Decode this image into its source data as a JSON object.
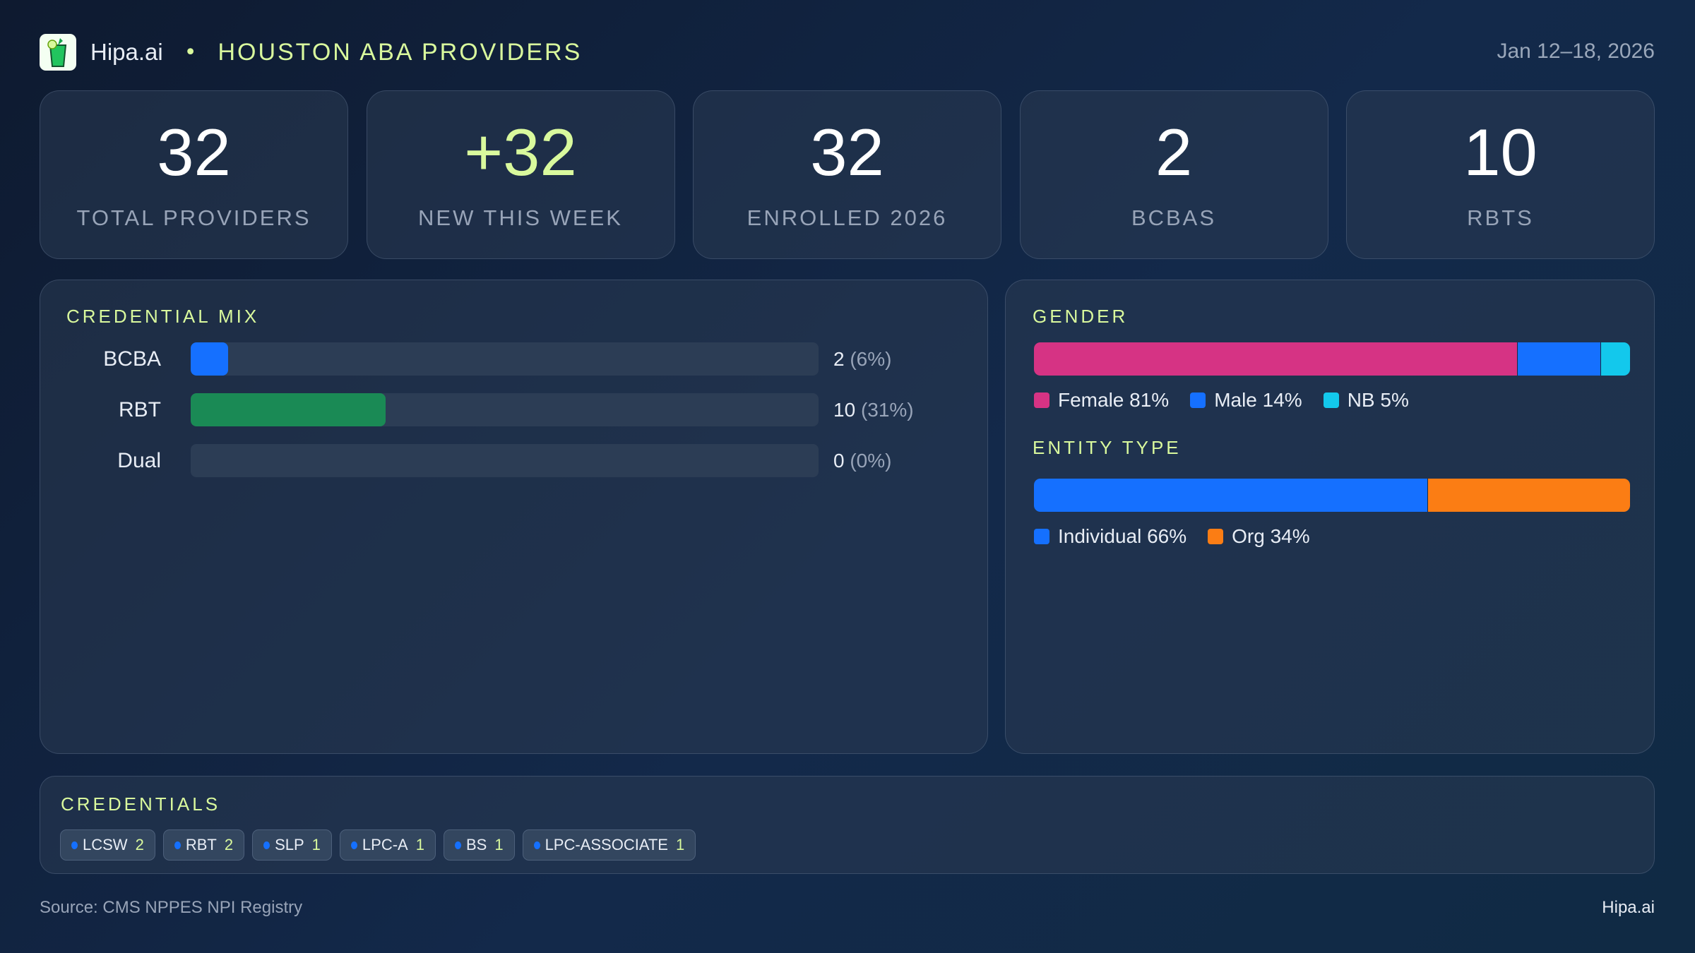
{
  "header": {
    "brand": "Hipa.ai",
    "separator": "•",
    "title": "HOUSTON ABA PROVIDERS",
    "date_range": "Jan 12–18, 2026",
    "logo_icon": "mojito-glass-icon"
  },
  "stats": [
    {
      "value": "32",
      "label": "TOTAL PROVIDERS"
    },
    {
      "value": "+32",
      "label": "NEW THIS WEEK"
    },
    {
      "value": "32",
      "label": "ENROLLED 2026"
    },
    {
      "value": "2",
      "label": "BCBAS"
    },
    {
      "value": "10",
      "label": "RBTS"
    }
  ],
  "credential_mix": {
    "title": "CREDENTIAL MIX",
    "rows": [
      {
        "label": "BCBA",
        "count": "2",
        "pct": "(6%)",
        "fraction": 0.06,
        "color": "#1570ff"
      },
      {
        "label": "RBT",
        "count": "10",
        "pct": "(31%)",
        "fraction": 0.31,
        "color": "#1a8a55"
      },
      {
        "label": "Dual",
        "count": "0",
        "pct": "(0%)",
        "fraction": 0,
        "color": "#1570ff"
      }
    ]
  },
  "gender": {
    "title": "GENDER",
    "segments": [
      {
        "label": "Female 81%",
        "percent": 81,
        "color": "#d63384"
      },
      {
        "label": "Male 14%",
        "percent": 14,
        "color": "#1570ff"
      },
      {
        "label": "NB 5%",
        "percent": 5,
        "color": "#13c8ec"
      }
    ]
  },
  "entity": {
    "title": "ENTITY TYPE",
    "segments": [
      {
        "label": "Individual 66%",
        "percent": 66,
        "color": "#1570ff"
      },
      {
        "label": "Org 34%",
        "percent": 34,
        "color": "#fb7d14"
      }
    ]
  },
  "credentials": {
    "title": "CREDENTIALS",
    "chips": [
      {
        "name": "LCSW",
        "count": "2"
      },
      {
        "name": "RBT",
        "count": "2"
      },
      {
        "name": "SLP",
        "count": "1"
      },
      {
        "name": "LPC-A",
        "count": "1"
      },
      {
        "name": "BS",
        "count": "1"
      },
      {
        "name": "LPC-ASSOCIATE",
        "count": "1"
      }
    ]
  },
  "footer": {
    "source": "Source: CMS NPPES NPI Registry",
    "brand": "Hipa.ai"
  },
  "colors": {
    "accent": "#d9f99d",
    "background": "#0f1d33"
  }
}
